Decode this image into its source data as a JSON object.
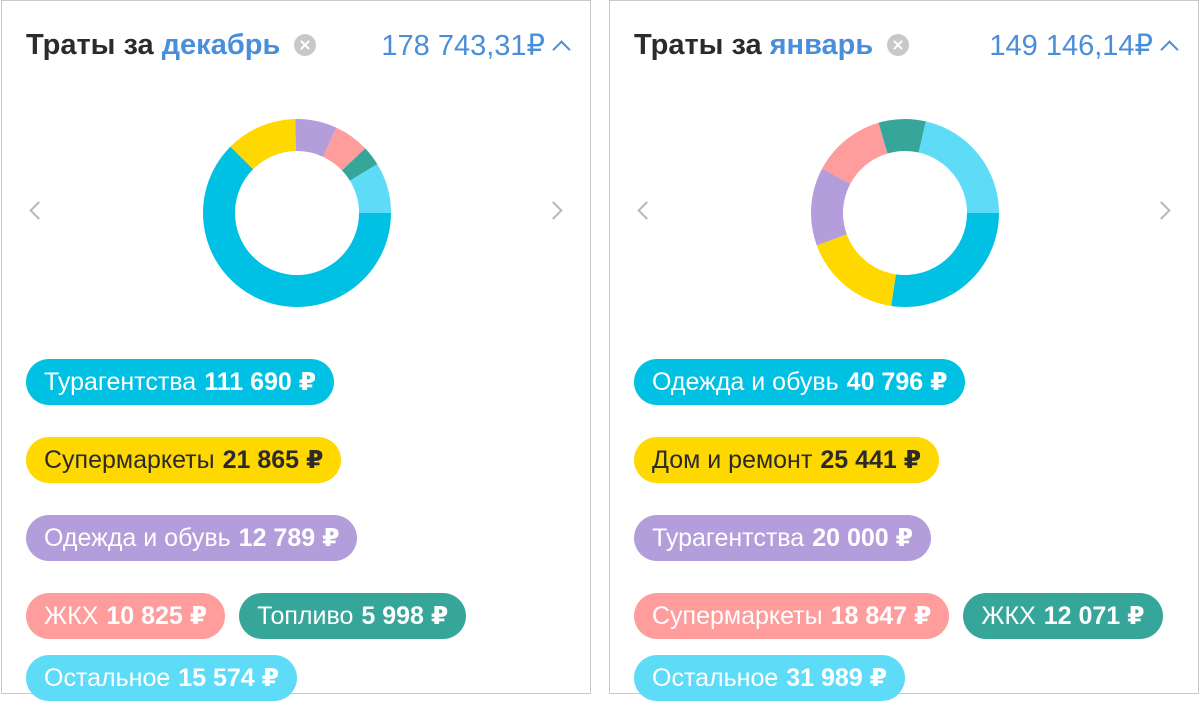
{
  "cards": [
    {
      "title_prefix": "Траты за",
      "month": "декабрь",
      "total": "178 743,31₽",
      "categories": [
        {
          "label": "Турагентства",
          "amount": "111 690 ₽",
          "value": 111690,
          "color": "#00c1e3",
          "text_color": "#ffffff"
        },
        {
          "label": "Супермаркеты",
          "amount": "21 865 ₽",
          "value": 21865,
          "color": "#ffd800",
          "text_color": "#2b2b2b"
        },
        {
          "label": "Одежда и обувь",
          "amount": "12 789 ₽",
          "value": 12789,
          "color": "#b39ddb",
          "text_color": "#ffffff"
        },
        {
          "label": "ЖКХ",
          "amount": "10 825 ₽",
          "value": 10825,
          "color": "#ff9c9c",
          "text_color": "#ffffff"
        },
        {
          "label": "Топливо",
          "amount": "5 998 ₽",
          "value": 5998,
          "color": "#35a699",
          "text_color": "#ffffff"
        },
        {
          "label": "Остальное",
          "amount": "15 574 ₽",
          "value": 15574,
          "color": "#5edcf7",
          "text_color": "#ffffff"
        }
      ]
    },
    {
      "title_prefix": "Траты за",
      "month": "январь",
      "total": "149 146,14₽",
      "categories": [
        {
          "label": "Одежда и обувь",
          "amount": "40 796 ₽",
          "value": 40796,
          "color": "#00c1e3",
          "text_color": "#ffffff"
        },
        {
          "label": "Дом и ремонт",
          "amount": "25 441 ₽",
          "value": 25441,
          "color": "#ffd800",
          "text_color": "#2b2b2b"
        },
        {
          "label": "Турагентства",
          "amount": "20 000 ₽",
          "value": 20000,
          "color": "#b39ddb",
          "text_color": "#ffffff"
        },
        {
          "label": "Супермаркеты",
          "amount": "18 847 ₽",
          "value": 18847,
          "color": "#ff9c9c",
          "text_color": "#ffffff"
        },
        {
          "label": "ЖКХ",
          "amount": "12 071 ₽",
          "value": 12071,
          "color": "#35a699",
          "text_color": "#ffffff"
        },
        {
          "label": "Остальное",
          "amount": "31 989 ₽",
          "value": 31989,
          "color": "#5edcf7",
          "text_color": "#ffffff"
        }
      ]
    }
  ],
  "icons": {
    "clear": "close-circle-icon",
    "collapse": "chevron-up-icon",
    "prev": "chevron-left-icon",
    "next": "chevron-right-icon"
  }
}
